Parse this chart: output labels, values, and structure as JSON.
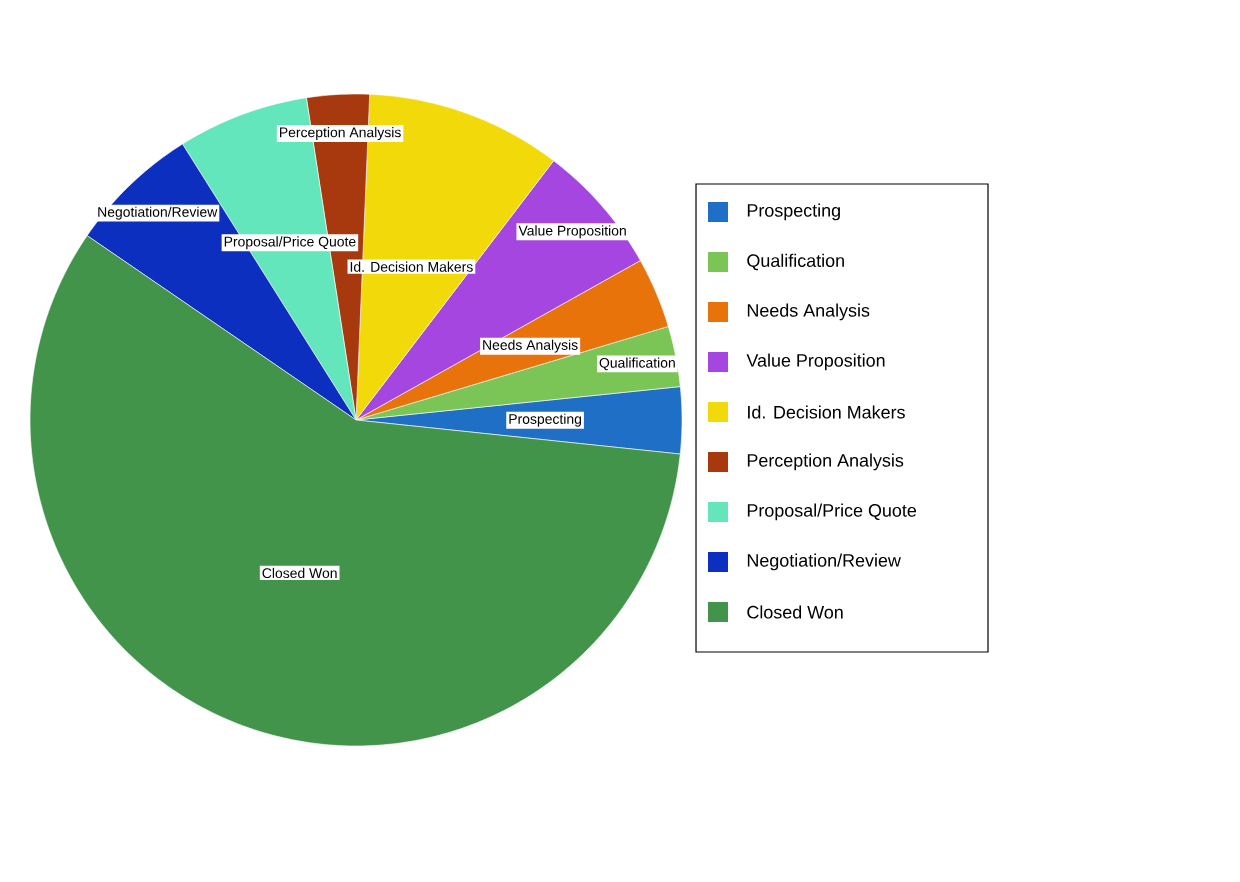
{
  "chart_data": {
    "type": "pie",
    "categories": [
      "Prospecting",
      "Qualification",
      "Needs Analysis",
      "Value Proposition",
      "Id. Decision Makers",
      "Perception Analysis",
      "Proposal/Price Quote",
      "Negotiation/Review",
      "Closed Won"
    ],
    "values": [
      3.3,
      3.0,
      3.5,
      6.5,
      9.7,
      3.1,
      6.5,
      6.5,
      57.9
    ],
    "colors": [
      "#1f6fc6",
      "#7ac555",
      "#e8730a",
      "#a646e0",
      "#f2d90a",
      "#a8380e",
      "#64e6bd",
      "#0d2fbf",
      "#41944a"
    ],
    "legend": "right"
  }
}
